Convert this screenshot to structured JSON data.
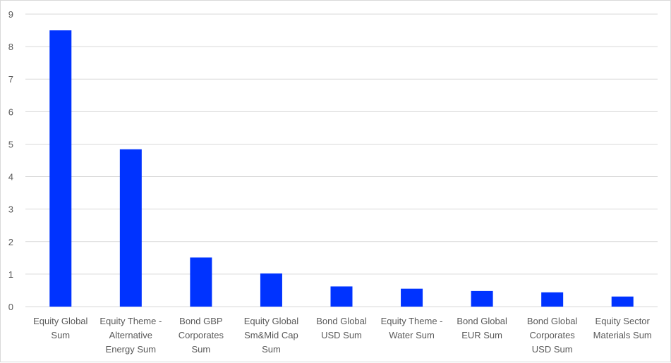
{
  "chart_data": {
    "type": "bar",
    "title": "",
    "xlabel": "",
    "ylabel": "",
    "ylim": [
      0,
      9
    ],
    "yticks": [
      "0",
      "1",
      "2",
      "3",
      "4",
      "5",
      "6",
      "7",
      "8",
      "9"
    ],
    "grid": true,
    "legend": "none",
    "bar_color": "#0033ff",
    "categories": [
      [
        "Equity Global",
        "Sum"
      ],
      [
        "Equity Theme -",
        "Alternative",
        "Energy Sum"
      ],
      [
        "Bond GBP",
        "Corporates",
        "Sum"
      ],
      [
        "Equity Global",
        "Sm&Mid Cap",
        "Sum"
      ],
      [
        "Bond Global",
        "USD Sum"
      ],
      [
        "Equity Theme -",
        "Water Sum"
      ],
      [
        "Bond Global",
        "EUR Sum"
      ],
      [
        "Bond Global",
        "Corporates",
        "USD Sum"
      ],
      [
        "Equity Sector",
        "Materials Sum"
      ]
    ],
    "values": [
      8.5,
      4.84,
      1.51,
      1.02,
      0.62,
      0.55,
      0.48,
      0.44,
      0.31
    ]
  }
}
